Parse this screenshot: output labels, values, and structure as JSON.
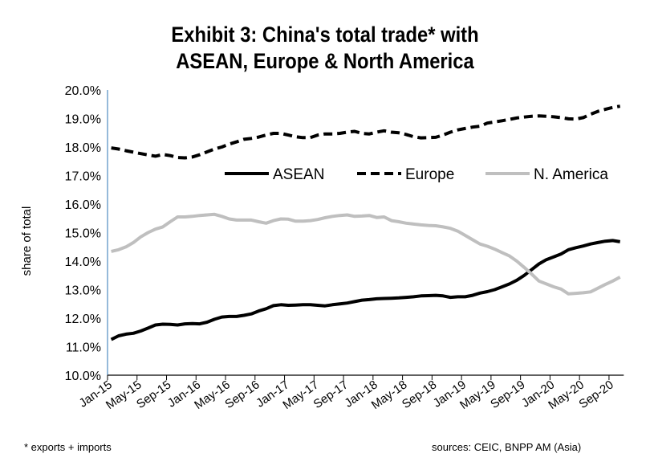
{
  "chart_data": {
    "type": "line",
    "title_lines": [
      "Exhibit 3: China's total trade* with",
      "ASEAN, Europe & North America"
    ],
    "ylabel": "share of total",
    "ylim": [
      10,
      20
    ],
    "ytick_labels": [
      "10.0%",
      "11.0%",
      "12.0%",
      "13.0%",
      "14.0%",
      "15.0%",
      "16.0%",
      "17.0%",
      "18.0%",
      "19.0%",
      "20.0%"
    ],
    "x_start": "Jan-15",
    "x_end": "Oct-20",
    "x_frequency": "monthly",
    "xtick_labels": [
      "Jan-15",
      "May-15",
      "Sep-15",
      "Jan-16",
      "May-16",
      "Sep-16",
      "Jan-17",
      "May-17",
      "Sep-17",
      "Jan-18",
      "May-18",
      "Sep-18",
      "Jan-19",
      "May-19",
      "Sep-19",
      "Jan-20",
      "May-20",
      "Sep-20"
    ],
    "legend_position": "top-center",
    "grid": false,
    "series": [
      {
        "name": "ASEAN",
        "style": "solid",
        "color": "#000000",
        "values": [
          11.25,
          11.38,
          11.44,
          11.47,
          11.55,
          11.65,
          11.76,
          11.79,
          11.78,
          11.76,
          11.8,
          11.81,
          11.8,
          11.86,
          11.96,
          12.04,
          12.06,
          12.06,
          12.1,
          12.15,
          12.25,
          12.33,
          12.44,
          12.47,
          12.45,
          12.46,
          12.47,
          12.47,
          12.45,
          12.43,
          12.47,
          12.5,
          12.53,
          12.58,
          12.63,
          12.65,
          12.68,
          12.69,
          12.7,
          12.71,
          12.73,
          12.75,
          12.78,
          12.79,
          12.8,
          12.78,
          12.73,
          12.75,
          12.75,
          12.8,
          12.88,
          12.93,
          13.0,
          13.1,
          13.2,
          13.33,
          13.5,
          13.7,
          13.9,
          14.05,
          14.15,
          14.25,
          14.4,
          14.47,
          14.53,
          14.6,
          14.65,
          14.7,
          14.72,
          14.68
        ]
      },
      {
        "name": "Europe",
        "style": "dashed",
        "color": "#000000",
        "values": [
          17.97,
          17.93,
          17.87,
          17.82,
          17.77,
          17.72,
          17.68,
          17.74,
          17.7,
          17.63,
          17.62,
          17.65,
          17.73,
          17.83,
          17.93,
          18.0,
          18.1,
          18.18,
          18.27,
          18.3,
          18.35,
          18.42,
          18.48,
          18.48,
          18.42,
          18.36,
          18.33,
          18.33,
          18.42,
          18.46,
          18.46,
          18.48,
          18.52,
          18.55,
          18.48,
          18.46,
          18.52,
          18.57,
          18.52,
          18.5,
          18.44,
          18.36,
          18.32,
          18.33,
          18.34,
          18.42,
          18.52,
          18.6,
          18.65,
          18.7,
          18.73,
          18.84,
          18.88,
          18.92,
          18.97,
          19.02,
          19.05,
          19.08,
          19.09,
          19.08,
          19.06,
          19.03,
          18.99,
          18.98,
          19.03,
          19.15,
          19.25,
          19.32,
          19.39,
          19.43
        ]
      },
      {
        "name": "N. America",
        "style": "solid",
        "color": "#bfbfbf",
        "values": [
          14.34,
          14.4,
          14.5,
          14.65,
          14.85,
          15.0,
          15.12,
          15.2,
          15.38,
          15.55,
          15.55,
          15.57,
          15.6,
          15.62,
          15.64,
          15.57,
          15.48,
          15.44,
          15.44,
          15.44,
          15.38,
          15.33,
          15.42,
          15.48,
          15.47,
          15.4,
          15.4,
          15.42,
          15.46,
          15.52,
          15.57,
          15.6,
          15.62,
          15.57,
          15.58,
          15.6,
          15.53,
          15.55,
          15.42,
          15.38,
          15.33,
          15.3,
          15.27,
          15.25,
          15.24,
          15.2,
          15.15,
          15.05,
          14.9,
          14.75,
          14.6,
          14.52,
          14.42,
          14.3,
          14.18,
          14.0,
          13.78,
          13.55,
          13.3,
          13.2,
          13.1,
          13.02,
          12.85,
          12.87,
          12.89,
          12.92,
          13.05,
          13.18,
          13.3,
          13.44
        ]
      }
    ],
    "axis_color": "#2e75b6"
  },
  "footnotes": {
    "left": "* exports + imports",
    "right": "sources: CEIC, BNPP AM (Asia)"
  }
}
